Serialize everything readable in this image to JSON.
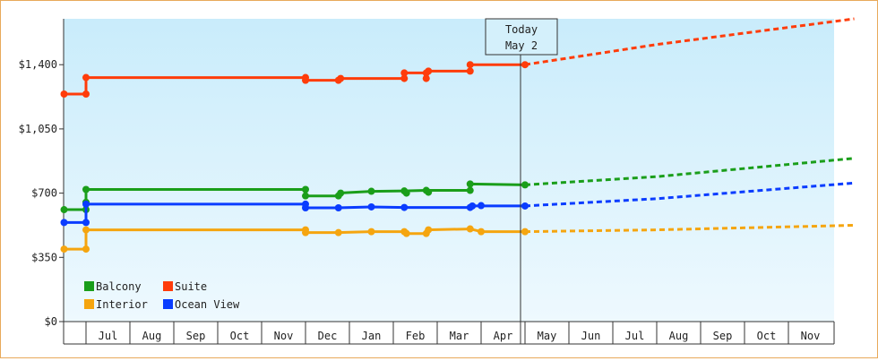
{
  "chart_data": {
    "type": "line",
    "y_ticks": [
      "$0",
      "$350",
      "$700",
      "$1,050",
      "$1,400"
    ],
    "ylim": [
      0,
      1650
    ],
    "months": [
      "Jul",
      "Aug",
      "Sep",
      "Oct",
      "Nov",
      "Dec",
      "Jan",
      "Feb",
      "Mar",
      "Apr",
      "May",
      "Jun",
      "Jul",
      "Aug",
      "Sep",
      "Oct",
      "Nov"
    ],
    "today": {
      "line1": "Today",
      "line2": "May 2",
      "t": 10.0
    },
    "legend_placement": "bottom-left",
    "series": [
      {
        "name": "Balcony",
        "color": "#1a9e1a",
        "actual": [
          [
            -0.5,
            610
          ],
          [
            0,
            610
          ],
          [
            0,
            650
          ],
          [
            0,
            720
          ],
          [
            5,
            720
          ],
          [
            5,
            685
          ],
          [
            5.75,
            685
          ],
          [
            5.75,
            700
          ],
          [
            6.5,
            710
          ],
          [
            7.25,
            712
          ],
          [
            7.75,
            715
          ],
          [
            8.75,
            715
          ],
          [
            8.75,
            750
          ],
          [
            10,
            745
          ]
        ],
        "markers": [
          [
            -0.5,
            610
          ],
          [
            0,
            610
          ],
          [
            0,
            650
          ],
          [
            0,
            720
          ],
          [
            5,
            720
          ],
          [
            5,
            685
          ],
          [
            5.75,
            685
          ],
          [
            5.8,
            700
          ],
          [
            6.5,
            710
          ],
          [
            7.25,
            712
          ],
          [
            7.3,
            700
          ],
          [
            7.75,
            715
          ],
          [
            7.8,
            705
          ],
          [
            8.75,
            715
          ],
          [
            8.75,
            750
          ],
          [
            10,
            745
          ]
        ],
        "forecast": [
          [
            10,
            745
          ],
          [
            13,
            790
          ],
          [
            17.5,
            890
          ]
        ]
      },
      {
        "name": "Suite",
        "color": "#ff3c0a",
        "actual": [
          [
            -0.5,
            1240
          ],
          [
            0,
            1240
          ],
          [
            0,
            1330
          ],
          [
            5,
            1330
          ],
          [
            5,
            1315
          ],
          [
            5.75,
            1315
          ],
          [
            5.75,
            1325
          ],
          [
            7.25,
            1325
          ],
          [
            7.25,
            1355
          ],
          [
            7.75,
            1355
          ],
          [
            7.75,
            1365
          ],
          [
            8.75,
            1365
          ],
          [
            8.75,
            1400
          ],
          [
            10,
            1400
          ]
        ],
        "markers": [
          [
            -0.5,
            1240
          ],
          [
            0,
            1240
          ],
          [
            0,
            1330
          ],
          [
            5,
            1330
          ],
          [
            5,
            1315
          ],
          [
            5.75,
            1315
          ],
          [
            5.8,
            1325
          ],
          [
            7.25,
            1325
          ],
          [
            7.25,
            1355
          ],
          [
            7.75,
            1355
          ],
          [
            7.75,
            1325
          ],
          [
            7.8,
            1365
          ],
          [
            8.75,
            1365
          ],
          [
            8.75,
            1400
          ],
          [
            10,
            1400
          ]
        ],
        "forecast": [
          [
            10,
            1400
          ],
          [
            13,
            1510
          ],
          [
            17.5,
            1650
          ]
        ]
      },
      {
        "name": "Interior",
        "color": "#f5a50f",
        "actual": [
          [
            -0.5,
            395
          ],
          [
            0,
            395
          ],
          [
            0,
            500
          ],
          [
            5,
            500
          ],
          [
            5,
            485
          ],
          [
            5.75,
            485
          ],
          [
            6.5,
            490
          ],
          [
            7.25,
            490
          ],
          [
            7.25,
            480
          ],
          [
            7.75,
            480
          ],
          [
            7.75,
            500
          ],
          [
            8.75,
            505
          ],
          [
            9,
            490
          ],
          [
            10,
            490
          ]
        ],
        "markers": [
          [
            -0.5,
            395
          ],
          [
            0,
            395
          ],
          [
            0,
            500
          ],
          [
            5,
            500
          ],
          [
            5,
            485
          ],
          [
            5.75,
            485
          ],
          [
            6.5,
            490
          ],
          [
            7.25,
            490
          ],
          [
            7.3,
            480
          ],
          [
            7.75,
            480
          ],
          [
            7.8,
            500
          ],
          [
            8.75,
            505
          ],
          [
            9,
            490
          ],
          [
            10,
            490
          ]
        ],
        "forecast": [
          [
            10,
            490
          ],
          [
            13,
            500
          ],
          [
            17.5,
            525
          ]
        ]
      },
      {
        "name": "Ocean View",
        "color": "#0a3cff",
        "actual": [
          [
            -0.5,
            540
          ],
          [
            0,
            540
          ],
          [
            0,
            640
          ],
          [
            5,
            640
          ],
          [
            5,
            620
          ],
          [
            5.75,
            620
          ],
          [
            6.5,
            625
          ],
          [
            7.25,
            622
          ],
          [
            8.75,
            622
          ],
          [
            8.75,
            630
          ],
          [
            10,
            630
          ]
        ],
        "markers": [
          [
            -0.5,
            540
          ],
          [
            0,
            540
          ],
          [
            0,
            640
          ],
          [
            5,
            640
          ],
          [
            5,
            620
          ],
          [
            5.75,
            620
          ],
          [
            6.5,
            625
          ],
          [
            7.25,
            622
          ],
          [
            8.75,
            622
          ],
          [
            8.8,
            630
          ],
          [
            9,
            632
          ],
          [
            10,
            630
          ]
        ],
        "forecast": [
          [
            10,
            630
          ],
          [
            13,
            670
          ],
          [
            17.5,
            755
          ]
        ]
      }
    ]
  }
}
